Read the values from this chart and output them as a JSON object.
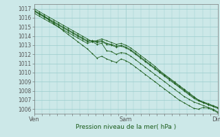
{
  "title": "",
  "xlabel": "Pression niveau de la mer( hPa )",
  "ylabel": "",
  "background_color": "#cce8e8",
  "plot_bg_color": "#cce8e8",
  "grid_color": "#99cccc",
  "line_color": "#1a5c1a",
  "ylim": [
    1005.5,
    1017.5
  ],
  "xlim": [
    0,
    48
  ],
  "yticks": [
    1006,
    1007,
    1008,
    1009,
    1010,
    1011,
    1012,
    1013,
    1014,
    1015,
    1016,
    1017
  ],
  "xtick_positions": [
    0,
    24,
    48
  ],
  "xtick_labels": [
    "Ven",
    "Sam",
    "Dim"
  ],
  "series": [
    [
      1017.0,
      1016.7,
      1016.4,
      1016.1,
      1015.8,
      1015.5,
      1015.2,
      1014.9,
      1014.6,
      1014.3,
      1014.0,
      1013.7,
      1013.4,
      1013.1,
      1013.2,
      1012.4,
      1012.3,
      1012.0,
      1012.2,
      1012.1,
      1011.8,
      1011.4,
      1011.0,
      1010.6,
      1010.2,
      1009.8,
      1009.4,
      1009.0,
      1008.6,
      1008.2,
      1007.8,
      1007.4,
      1007.1,
      1006.8,
      1006.6,
      1006.4,
      1006.2,
      1006.0,
      1005.7
    ],
    [
      1016.8,
      1016.5,
      1016.2,
      1015.9,
      1015.6,
      1015.3,
      1015.0,
      1014.7,
      1014.4,
      1014.1,
      1013.8,
      1013.5,
      1013.5,
      1013.3,
      1013.4,
      1013.1,
      1013.0,
      1012.8,
      1012.9,
      1012.7,
      1012.4,
      1012.0,
      1011.6,
      1011.2,
      1010.8,
      1010.4,
      1010.0,
      1009.6,
      1009.2,
      1008.8,
      1008.4,
      1008.0,
      1007.6,
      1007.2,
      1006.9,
      1006.7,
      1006.5,
      1006.3,
      1006.1
    ],
    [
      1016.7,
      1016.4,
      1016.1,
      1015.8,
      1015.5,
      1015.2,
      1014.9,
      1014.6,
      1014.3,
      1014.0,
      1013.7,
      1013.4,
      1013.5,
      1013.4,
      1013.5,
      1013.2,
      1013.1,
      1012.9,
      1013.0,
      1012.8,
      1012.5,
      1012.1,
      1011.7,
      1011.3,
      1010.9,
      1010.5,
      1010.1,
      1009.7,
      1009.3,
      1008.9,
      1008.5,
      1008.1,
      1007.7,
      1007.3,
      1007.0,
      1006.8,
      1006.6,
      1006.4,
      1006.2
    ],
    [
      1016.5,
      1016.2,
      1015.9,
      1015.6,
      1015.3,
      1015.0,
      1014.7,
      1014.4,
      1014.1,
      1013.8,
      1013.5,
      1013.2,
      1013.4,
      1013.5,
      1013.7,
      1013.5,
      1013.3,
      1013.1,
      1013.2,
      1013.0,
      1012.7,
      1012.3,
      1011.9,
      1011.5,
      1011.1,
      1010.7,
      1010.2,
      1009.8,
      1009.4,
      1009.0,
      1008.6,
      1008.2,
      1007.8,
      1007.4,
      1007.0,
      1006.7,
      1006.5,
      1006.3,
      1006.1
    ],
    [
      1016.8,
      1016.5,
      1016.2,
      1015.8,
      1015.4,
      1015.0,
      1014.6,
      1014.2,
      1013.8,
      1013.4,
      1013.0,
      1012.6,
      1012.1,
      1011.6,
      1011.8,
      1011.5,
      1011.3,
      1011.1,
      1011.5,
      1011.3,
      1011.0,
      1010.6,
      1010.2,
      1009.8,
      1009.4,
      1009.0,
      1008.6,
      1008.2,
      1007.8,
      1007.4,
      1007.0,
      1006.7,
      1006.4,
      1006.1,
      1006.0,
      1006.2,
      1006.1,
      1005.9,
      1005.6
    ]
  ]
}
